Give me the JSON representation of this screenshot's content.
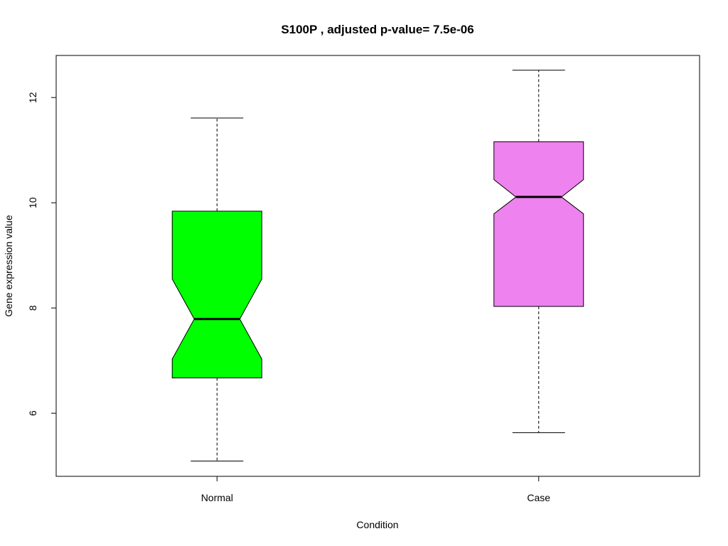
{
  "chart_data": {
    "type": "boxplot",
    "title": "S100P ,  adjusted p-value=  7.5e-06",
    "xlabel": "Condition",
    "ylabel": "Gene expression value",
    "ylim": [
      4.8,
      12.8
    ],
    "yticks": [
      6,
      8,
      10,
      12
    ],
    "notched": true,
    "grid": false,
    "categories": [
      "Normal",
      "Case"
    ],
    "boxes": [
      {
        "category": "Normal",
        "color": "#00ff00",
        "whisker_low": 5.09,
        "q1": 6.67,
        "median": 7.79,
        "q3": 9.84,
        "whisker_high": 11.61,
        "notch_low": 7.03,
        "notch_high": 8.55
      },
      {
        "category": "Case",
        "color": "#ee82ee",
        "whisker_low": 5.63,
        "q1": 8.03,
        "median": 10.11,
        "q3": 11.16,
        "whisker_high": 12.52,
        "notch_low": 9.79,
        "notch_high": 10.44
      }
    ]
  }
}
